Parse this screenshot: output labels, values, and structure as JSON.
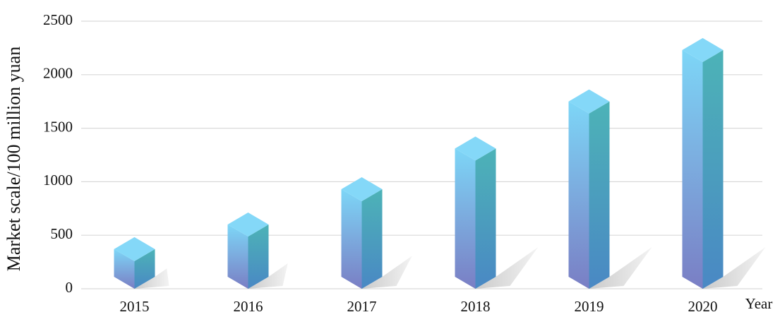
{
  "chart_data": {
    "type": "bar3d",
    "y_label": "Market scale/100 million yuan",
    "x_label": "Year",
    "categories": [
      "2015",
      "2016",
      "2017",
      "2018",
      "2019",
      "2020"
    ],
    "values": [
      370,
      600,
      930,
      1310,
      1750,
      2230
    ],
    "ylim": [
      0,
      2500
    ],
    "yticks": [
      0,
      500,
      1000,
      1500,
      2000,
      2500
    ],
    "grid": true
  }
}
